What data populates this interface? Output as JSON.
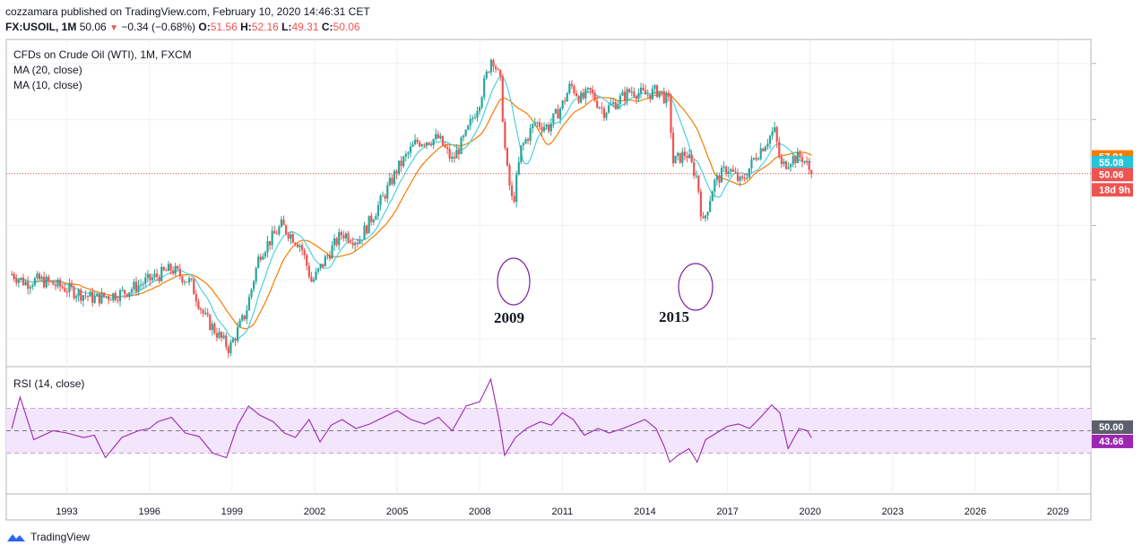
{
  "header": {
    "publisher_line": "cozzamara published on TradingView.com, February 10, 2020 14:46:31 CET",
    "symbol": "FX:USOIL, 1M",
    "last": "50.06",
    "change": "−0.34 (−0.68%)",
    "o_label": "O:",
    "o_value": "51.56",
    "h_label": "H:",
    "h_value": "52.16",
    "l_label": "L:",
    "l_value": "49.31",
    "c_label": "C:",
    "c_value": "50.06"
  },
  "legend": {
    "instrument": "CFDs on Crude Oil (WTI), 1M, FXCM",
    "ma20": "MA (20, close)",
    "ma10": "MA (10, close)",
    "rsi": "RSI (14, close)"
  },
  "annotations": {
    "a2009": "2009",
    "a2015": "2015"
  },
  "price_badges": {
    "ma20": "57.91",
    "ma10": "55.08",
    "last": "50.06",
    "countdown": "18d 9h",
    "rsi_mid": "50.00",
    "rsi_val": "43.66"
  },
  "footer": {
    "brand": "TradingView"
  },
  "colors": {
    "up": "#26a69a",
    "down": "#ef5350",
    "ma20": "#f57c00",
    "ma10": "#4dd0e1",
    "rsi": "#9c27b0",
    "rsi_band": "#f3e5fb",
    "ellipse": "#7b1fa2"
  },
  "chart_data": [
    {
      "type": "candlestick",
      "title": "CFDs on Crude Oil (WTI), 1M, FXCM",
      "x_tick_labels": [
        "1993",
        "1996",
        "1999",
        "2002",
        "2005",
        "2008",
        "2011",
        "2014",
        "2017",
        "2020",
        "2023",
        "2026",
        "2029"
      ],
      "x_range": [
        1990.8,
        2030.2
      ],
      "y_scale": "log",
      "y_range": [
        9.5,
        160
      ],
      "x": [
        1991,
        1991.5,
        1992,
        1993,
        1994,
        1995,
        1996,
        1996.8,
        1997.5,
        1998,
        1998.9,
        1999.5,
        2000,
        2000.8,
        2001.5,
        2001.9,
        2002.5,
        2003,
        2003.6,
        2004.5,
        2005,
        2005.7,
        2006.5,
        2007,
        2007.5,
        2008,
        2008.45,
        2008.75,
        2008.95,
        2009.2,
        2009.5,
        2010,
        2010.5,
        2011,
        2011.3,
        2011.7,
        2012,
        2012.5,
        2013,
        2013.5,
        2014,
        2014.5,
        2014.9,
        2015,
        2015.5,
        2015.9,
        2016.1,
        2016.5,
        2017,
        2017.5,
        2018,
        2018.7,
        2018.95,
        2019.3,
        2019.7,
        2020.05
      ],
      "y": [
        21,
        19.5,
        20,
        18.5,
        17,
        17.8,
        20,
        22,
        19.5,
        14.5,
        11,
        15,
        25,
        32,
        27,
        19.5,
        25,
        30,
        28,
        41,
        52,
        66,
        68,
        56,
        70,
        95,
        140,
        110,
        55,
        38,
        62,
        78,
        75,
        91,
        108,
        95,
        102,
        86,
        94,
        103,
        99,
        103,
        92,
        55,
        60,
        48,
        32,
        46,
        53,
        46,
        58,
        73,
        53,
        57,
        58,
        50.06
      ],
      "ma20_last": 57.91,
      "ma10_last": 55.08,
      "last": 50.06,
      "countdown": "18d 9h",
      "annotations": [
        "2009",
        "2015"
      ]
    },
    {
      "type": "line",
      "title": "RSI (14, close)",
      "y_range": [
        0,
        100
      ],
      "bands": [
        30,
        50,
        70
      ],
      "x": [
        1991,
        1991.3,
        1991.8,
        1992.5,
        1993,
        1993.6,
        1994,
        1994.4,
        1995,
        1995.6,
        1996,
        1996.3,
        1996.8,
        1997.3,
        1997.8,
        1998.3,
        1998.8,
        1999.2,
        1999.6,
        2000,
        2000.5,
        2000.9,
        2001.3,
        2001.8,
        2002.2,
        2002.6,
        2003,
        2003.5,
        2004,
        2004.5,
        2005,
        2005.5,
        2006,
        2006.5,
        2007,
        2007.5,
        2008,
        2008.4,
        2008.7,
        2008.9,
        2009.3,
        2009.7,
        2010.2,
        2010.6,
        2011,
        2011.4,
        2011.8,
        2012.3,
        2012.7,
        2013.2,
        2013.6,
        2014,
        2014.4,
        2014.7,
        2014.9,
        2015.2,
        2015.6,
        2015.9,
        2016.2,
        2016.6,
        2017,
        2017.4,
        2017.8,
        2018.2,
        2018.6,
        2018.9,
        2019.2,
        2019.6,
        2019.9,
        2020.05
      ],
      "y": [
        52,
        80,
        42,
        50,
        48,
        44,
        46,
        26,
        44,
        50,
        52,
        58,
        62,
        48,
        45,
        30,
        26,
        55,
        72,
        64,
        58,
        48,
        44,
        60,
        40,
        55,
        60,
        52,
        56,
        62,
        68,
        60,
        56,
        62,
        50,
        72,
        76,
        96,
        60,
        28,
        44,
        52,
        58,
        55,
        66,
        60,
        46,
        52,
        48,
        52,
        56,
        60,
        52,
        36,
        22,
        28,
        34,
        22,
        42,
        48,
        54,
        56,
        52,
        62,
        73,
        66,
        34,
        52,
        50,
        43.66
      ],
      "last": 43.66
    }
  ]
}
